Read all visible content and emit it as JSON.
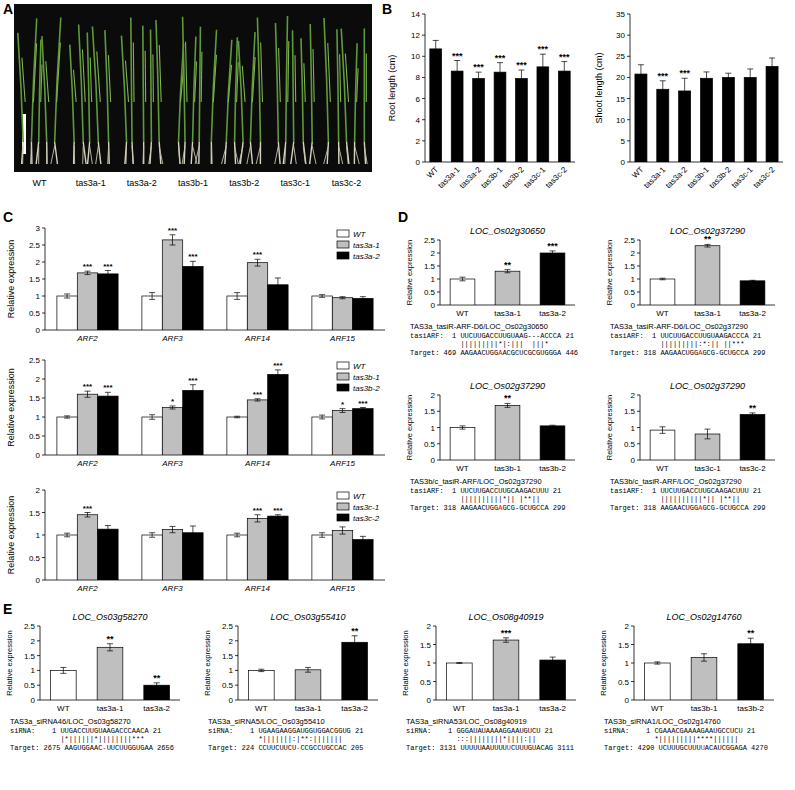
{
  "panel_a": {
    "panel": "A",
    "labels": [
      "WT",
      "tas3a-1",
      "tas3a-2",
      "tas3b-1",
      "tas3b-2",
      "tas3c-1",
      "tas3c-2"
    ]
  },
  "chart_data": [
    {
      "panel": "B",
      "type": "bar",
      "y_label": "Root length (cm)",
      "categories": [
        "WT",
        "tas3a-1",
        "tas3a-2",
        "tas3b-1",
        "tas3b-2",
        "tas3c-1",
        "tas3c-2"
      ],
      "values": [
        10.7,
        8.6,
        7.9,
        8.5,
        7.9,
        9.0,
        8.6
      ],
      "errors": [
        0.8,
        1.0,
        0.6,
        0.9,
        0.8,
        1.2,
        0.9
      ],
      "annotations": [
        null,
        "***",
        "***",
        "***",
        "***",
        "***",
        "***"
      ],
      "color": "#000000",
      "ylim": [
        0,
        14
      ],
      "yticks": [
        0,
        2,
        4,
        6,
        8,
        10,
        12,
        14
      ]
    },
    {
      "type": "bar",
      "y_label": "Shoot length (cm)",
      "categories": [
        "WT",
        "tas3a-1",
        "tas3a-2",
        "tas3b-1",
        "tas3b-2",
        "tas3c-1",
        "tas3c-2"
      ],
      "values": [
        20.8,
        17.2,
        16.8,
        19.8,
        20.0,
        20.0,
        22.6
      ],
      "errors": [
        2.2,
        2.0,
        3.0,
        1.5,
        1.0,
        2.0,
        2.0
      ],
      "annotations": [
        null,
        "***",
        "***",
        null,
        null,
        null,
        null
      ],
      "color": "#000000",
      "ylim": [
        0,
        35
      ],
      "yticks": [
        0,
        5,
        10,
        15,
        20,
        25,
        30,
        35
      ]
    },
    {
      "panel": "C",
      "type": "bar",
      "y_label": "Relative expression",
      "categories": [
        "ARF2",
        "ARF3",
        "ARF14",
        "ARF15"
      ],
      "legend": "upper-right",
      "ylim": [
        0,
        3
      ],
      "yticks": [
        0,
        0.5,
        1,
        1.5,
        2,
        2.5,
        3
      ],
      "series": [
        {
          "name": "WT",
          "color": "#ffffff",
          "values": [
            1,
            1,
            1,
            1
          ],
          "errors": [
            0.06,
            0.1,
            0.1,
            0.04
          ],
          "annotations": [
            null,
            null,
            null,
            null
          ]
        },
        {
          "name": "tas3a-1",
          "color": "#bfbfbf",
          "values": [
            1.68,
            2.65,
            1.98,
            0.95
          ],
          "errors": [
            0.05,
            0.15,
            0.1,
            0.03
          ],
          "annotations": [
            "***",
            "***",
            "***",
            null
          ]
        },
        {
          "name": "tas3a-2",
          "color": "#000000",
          "values": [
            1.65,
            1.87,
            1.33,
            0.93
          ],
          "errors": [
            0.1,
            0.15,
            0.2,
            0.05
          ],
          "annotations": [
            "***",
            "***",
            null,
            null
          ]
        }
      ]
    },
    {
      "type": "bar",
      "y_label": "Relative expression",
      "categories": [
        "ARF2",
        "ARF3",
        "ARF14",
        "ARF15"
      ],
      "legend": "upper-right",
      "ylim": [
        0,
        2.5
      ],
      "yticks": [
        0,
        0.5,
        1,
        1.5,
        2,
        2.5
      ],
      "series": [
        {
          "name": "WT",
          "color": "#ffffff",
          "values": [
            1,
            1,
            1,
            1
          ],
          "errors": [
            0.03,
            0.06,
            0.02,
            0.05
          ],
          "annotations": [
            null,
            null,
            null,
            null
          ]
        },
        {
          "name": "tas3b-1",
          "color": "#bfbfbf",
          "values": [
            1.6,
            1.25,
            1.45,
            1.17
          ],
          "errors": [
            0.08,
            0.04,
            0.03,
            0.05
          ],
          "annotations": [
            "***",
            "*",
            "***",
            "*"
          ]
        },
        {
          "name": "tas3b-2",
          "color": "#000000",
          "values": [
            1.55,
            1.7,
            2.12,
            1.22
          ],
          "errors": [
            0.1,
            0.15,
            0.12,
            0.03
          ],
          "annotations": [
            "***",
            "***",
            "***",
            "***"
          ]
        }
      ]
    },
    {
      "type": "bar",
      "y_label": "Relative expression",
      "categories": [
        "ARF2",
        "ARF3",
        "ARF14",
        "ARF15"
      ],
      "legend": "upper-right",
      "ylim": [
        0,
        2
      ],
      "yticks": [
        0,
        0.5,
        1,
        1.5,
        2
      ],
      "series": [
        {
          "name": "WT",
          "color": "#ffffff",
          "values": [
            1,
            1,
            1,
            1
          ],
          "errors": [
            0.04,
            0.05,
            0.04,
            0.05
          ],
          "annotations": [
            null,
            null,
            null,
            null
          ]
        },
        {
          "name": "tas3c-1",
          "color": "#bfbfbf",
          "values": [
            1.45,
            1.12,
            1.37,
            1.1
          ],
          "errors": [
            0.05,
            0.07,
            0.08,
            0.08
          ],
          "annotations": [
            "***",
            null,
            "***",
            null
          ]
        },
        {
          "name": "tas3c-2",
          "color": "#000000",
          "values": [
            1.13,
            1.05,
            1.42,
            0.9
          ],
          "errors": [
            0.08,
            0.15,
            0.03,
            0.07
          ],
          "annotations": [
            null,
            null,
            "***",
            null
          ]
        }
      ]
    },
    {
      "panel": "D",
      "type": "bar",
      "title": "LOC_Os02g30650",
      "y_label": "Relative expression",
      "categories": [
        "WT",
        "tas3a-1",
        "tas3a-2"
      ],
      "values": [
        1,
        1.3,
        2.0
      ],
      "errors": [
        0.07,
        0.06,
        0.08
      ],
      "annotations": [
        null,
        "**",
        "***"
      ],
      "colors": [
        "#ffffff",
        "#bfbfbf",
        "#000000"
      ],
      "ylim": [
        0,
        2.5
      ],
      "yticks": [
        0,
        0.5,
        1,
        1.5,
        2,
        2.5
      ],
      "alignment": {
        "title": "TAS3a_tasiR-ARF-D6/LOC_Os02g30650",
        "query": "tasiARF:  1 UUCUUGACCUUGUAAG---ACCCA 21",
        "match": "            |||||||||*|:|||  |||*",
        "target": [
          "Target: 469 AAGAACUGG",
          "A",
          "ACGCUCGCGUGGGA 446"
        ]
      }
    },
    {
      "type": "bar",
      "title": "LOC_Os02g37290",
      "y_label": "Relative expression",
      "categories": [
        "WT",
        "tas3a-1",
        "tas3a-2"
      ],
      "values": [
        1,
        2.28,
        0.93
      ],
      "errors": [
        0.03,
        0.05,
        0.02
      ],
      "annotations": [
        null,
        "**",
        null
      ],
      "colors": [
        "#ffffff",
        "#bfbfbf",
        "#000000"
      ],
      "ylim": [
        0,
        2.5
      ],
      "yticks": [
        0,
        0.5,
        1,
        1.5,
        2,
        2.5
      ],
      "alignment": {
        "title": "TAS3a_tasiR-ARF-D6/LOC_Os02g37290",
        "query": "tasiARF:  1 UUCUUGACCUUGUAAGACCCA 21",
        "match": "            |||||||||:*:|| ||***",
        "target": [
          "Target: 318 AAGAACUGG",
          "A",
          "GCG-GCUGCCA 299"
        ]
      }
    },
    {
      "type": "bar",
      "title": "LOC_Os02g37290",
      "y_label": "Relative expression",
      "categories": [
        "WT",
        "tas3b-1",
        "tas3b-2"
      ],
      "values": [
        1,
        1.68,
        1.05
      ],
      "errors": [
        0.05,
        0.06,
        0.02
      ],
      "annotations": [
        null,
        "**",
        null
      ],
      "colors": [
        "#ffffff",
        "#bfbfbf",
        "#000000"
      ],
      "ylim": [
        0,
        2
      ],
      "yticks": [
        0,
        0.5,
        1,
        1.5,
        2
      ],
      "alignment": {
        "title": "TAS3b/c_tasiR-ARF/LOC_Os02g37290",
        "query": "tasiARF:  1 UUCUUGACCUUGCAAGACUUU 21",
        "match": "            ||||||||||*|| |**||",
        "target": [
          "Target: 318 AAGAACUGG",
          "A",
          "GCG-GCUGCCA 299"
        ]
      }
    },
    {
      "type": "bar",
      "title": "LOC_Os02g37290",
      "y_label": "Relative expression",
      "categories": [
        "WT",
        "tas3c-1",
        "tas3c-2"
      ],
      "values": [
        0.92,
        0.8,
        1.4
      ],
      "errors": [
        0.1,
        0.15,
        0.05
      ],
      "annotations": [
        null,
        null,
        "**"
      ],
      "colors": [
        "#ffffff",
        "#bfbfbf",
        "#000000"
      ],
      "ylim": [
        0,
        2
      ],
      "yticks": [
        0,
        0.5,
        1,
        1.5,
        2
      ],
      "alignment": {
        "title": "TAS3b/c_tasiR-ARF/LOC_Os02g37290",
        "query": "tasiARF:  1 UUCUUGACCUUGCAAGACUUU 21",
        "match": "            ||||||||||*|| |**||",
        "target": [
          "Target: 318 AAGAACUGG",
          "A",
          "GCG-GCUGCCA 299"
        ]
      }
    },
    {
      "panel": "E",
      "type": "bar",
      "title": "LOC_Os03g58270",
      "y_label": "Relative expression",
      "categories": [
        "WT",
        "tas3a-1",
        "tas3a-2"
      ],
      "values": [
        1,
        1.78,
        0.5
      ],
      "errors": [
        0.1,
        0.12,
        0.08
      ],
      "annotations": [
        null,
        "**",
        "**"
      ],
      "colors": [
        "#ffffff",
        "#bfbfbf",
        "#000000"
      ],
      "ylim": [
        0,
        2.5
      ],
      "yticks": [
        0,
        0.5,
        1,
        1.5,
        2,
        2.5
      ],
      "alignment": {
        "title": "TAS3a_siRNA46/LOC_Os03g58270",
        "query": "siRNA:    1 UUGACCUUGUAAGACCCAACA 21",
        "match": "            |*||||||*||||||||***",
        "target": [
          "Target: 2675 AAGUGGAAC",
          "-",
          "UUCUUGGUGAA 2656"
        ]
      }
    },
    {
      "type": "bar",
      "title": "LOC_Os03g55410",
      "y_label": "Relative expression",
      "categories": [
        "WT",
        "tas3a-1",
        "tas3a-2"
      ],
      "values": [
        1,
        1.02,
        1.95
      ],
      "errors": [
        0.04,
        0.08,
        0.22
      ],
      "annotations": [
        null,
        null,
        "**"
      ],
      "colors": [
        "#ffffff",
        "#bfbfbf",
        "#000000"
      ],
      "ylim": [
        0,
        2.5
      ],
      "yticks": [
        0,
        0.5,
        1,
        1.5,
        2,
        2.5
      ],
      "alignment": {
        "title": "TAS3a_siRNA5/LOC_Os03g55410",
        "query": "siRNA:    1 UGAAGAAGGAUGGUGGACGGUG 21",
        "match": "            *|||||||:|**:|||||||",
        "target": [
          "Target: 224 CCUUCUUCU",
          "-",
          "CCGCCUGCCAC 205"
        ]
      }
    },
    {
      "type": "bar",
      "title": "LOC_Os08g40919",
      "y_label": "Relative expression",
      "categories": [
        "WT",
        "tas3a-1",
        "tas3a-2"
      ],
      "values": [
        1,
        1.62,
        1.08
      ],
      "errors": [
        0.01,
        0.06,
        0.08
      ],
      "annotations": [
        null,
        "***",
        null
      ],
      "colors": [
        "#ffffff",
        "#bfbfbf",
        "#000000"
      ],
      "ylim": [
        0,
        2
      ],
      "yticks": [
        0,
        0.5,
        1,
        1.5,
        2
      ],
      "alignment": {
        "title": "TAS3a_siRNA53/LOC_Os08g40919",
        "query": "siRNA:    1 GGGAUAUAAAAGGAAUGUCU 21",
        "match": "            :::||||||||*||||:||",
        "target": [
          "Target: 3131 UUUUUAAUUUU",
          "U",
          "CUUUGUACAG 3111"
        ]
      }
    },
    {
      "type": "bar",
      "title": "LOC_Os02g14760",
      "y_label": "Relative expression",
      "categories": [
        "WT",
        "tas3b-1",
        "tas3b-2"
      ],
      "values": [
        1,
        1.15,
        1.52
      ],
      "errors": [
        0.03,
        0.1,
        0.15
      ],
      "annotations": [
        null,
        null,
        "**"
      ],
      "colors": [
        "#ffffff",
        "#bfbfbf",
        "#000000"
      ],
      "ylim": [
        0,
        2
      ],
      "yticks": [
        0,
        0.5,
        1,
        1.5,
        2
      ],
      "alignment": {
        "title": "TAS3b_siRNA1/LOC_Os02g14760",
        "query": "siRNA:    1 CGAAACGAAAAGAAUGCCUCU 21",
        "match": "            *|||||||||****||||||",
        "target": [
          "Target: 4290 UCUUUGCUUU",
          "U",
          "ACAUCGGAGA 4270"
        ]
      }
    }
  ]
}
